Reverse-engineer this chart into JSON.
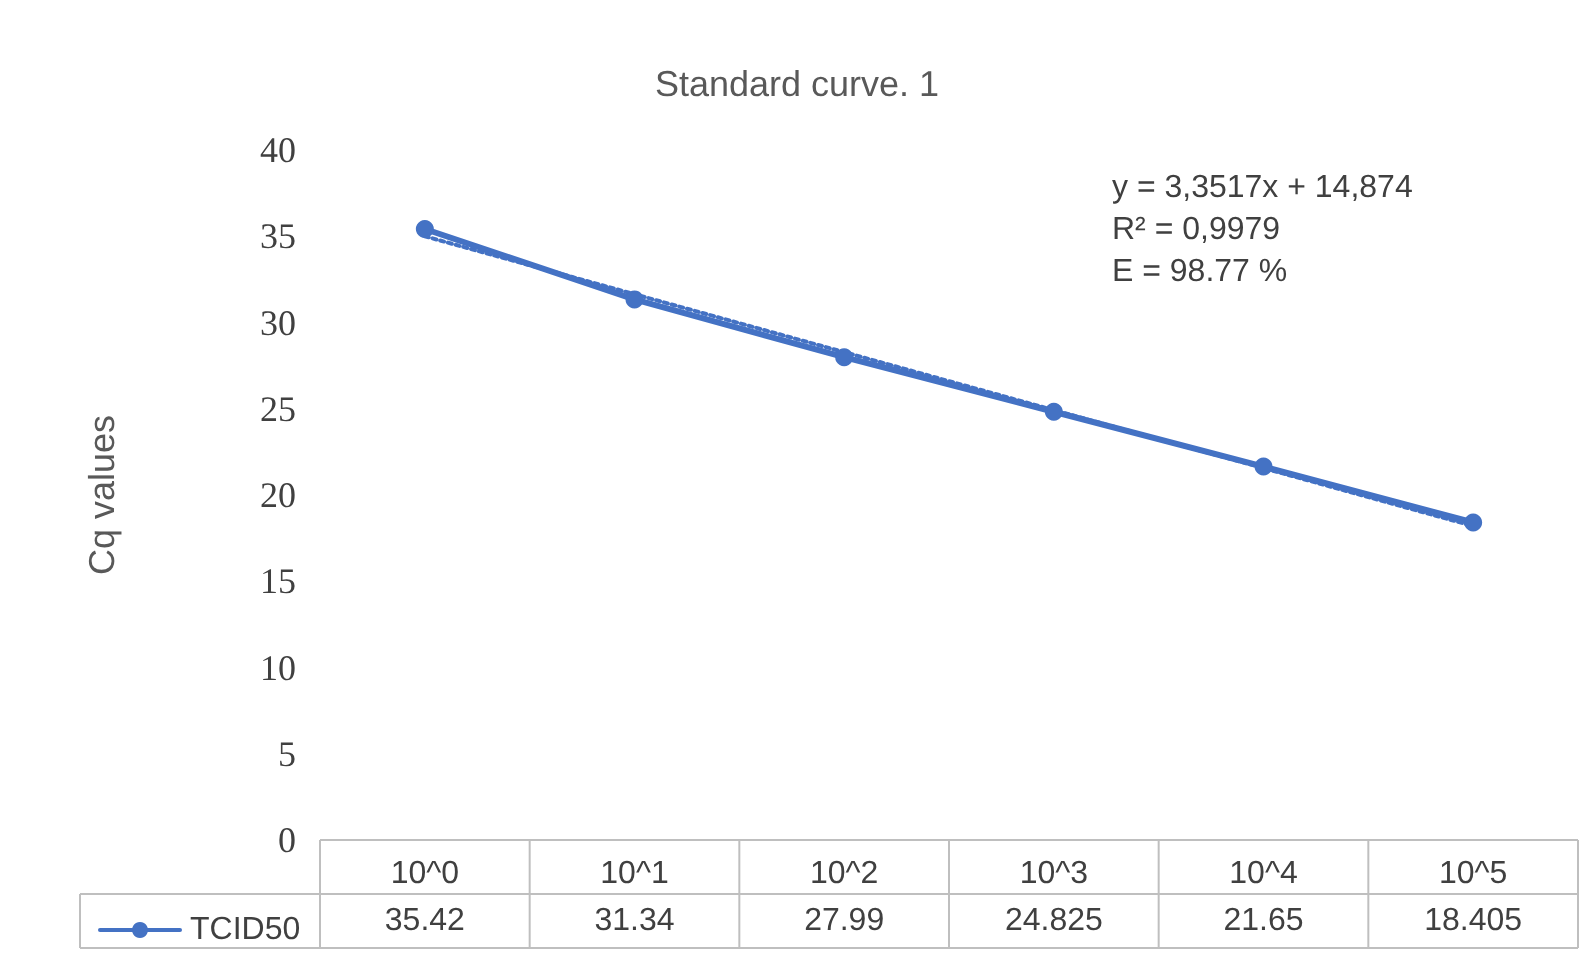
{
  "chart_data": {
    "type": "line",
    "title": "Standard curve. 1",
    "ylabel": "Cq values",
    "categories": [
      "10^0",
      "10^1",
      "10^2",
      "10^3",
      "10^4",
      "10^5"
    ],
    "series": [
      {
        "name": "TCID50",
        "color": "#4472c4",
        "values": [
          35.42,
          31.34,
          27.99,
          24.825,
          21.65,
          18.405
        ],
        "value_labels": [
          "35.42",
          "31.34",
          "27.99",
          "24.825",
          "21.65",
          "18.405"
        ],
        "marker": "circle",
        "line_style": "solid"
      },
      {
        "type": "line",
        "color": "#4472c4",
        "x": [
          "10^0",
          "10^5"
        ],
        "values": [
          35.0,
          18.2
        ],
        "line_style": "dotted"
      }
    ],
    "ylim": [
      0,
      40
    ],
    "yticks": [
      0,
      5,
      10,
      15,
      20,
      25,
      30,
      35,
      40
    ],
    "grid": false,
    "legend": "bottom",
    "annotations": [
      "y = 3,3517x + 14,874",
      "R² = 0,9979",
      "E = 98.77 %"
    ]
  }
}
